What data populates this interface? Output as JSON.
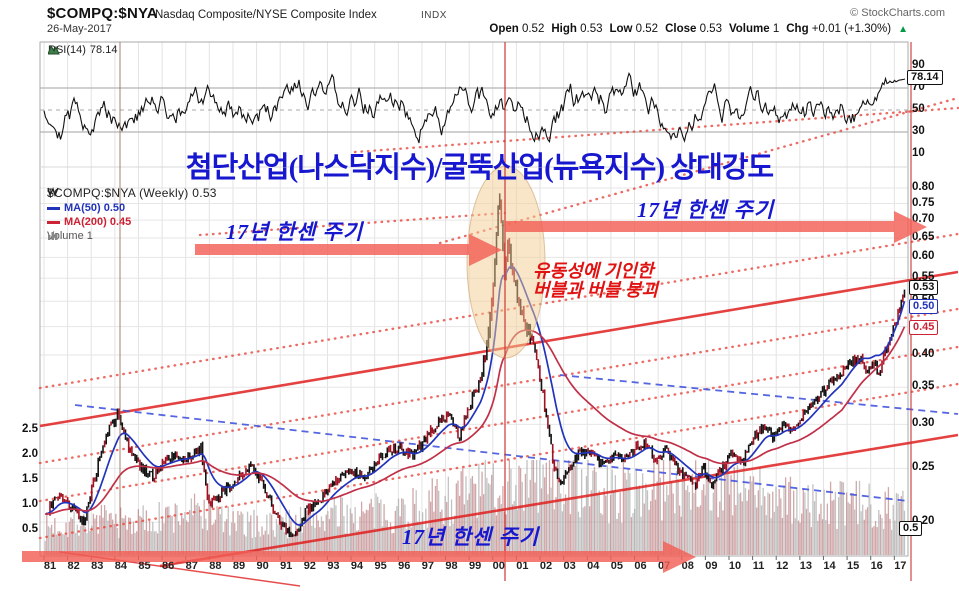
{
  "header": {
    "symbol": "$COMPQ:$NYA",
    "description": "Nasdaq Composite/NYSE Composite Index",
    "exchange": "INDX",
    "credit": "© StockCharts.com",
    "date": "26-May-2017",
    "quote": [
      {
        "label": "Open",
        "value": "0.52"
      },
      {
        "label": "High",
        "value": "0.53"
      },
      {
        "label": "Low",
        "value": "0.52"
      },
      {
        "label": "Close",
        "value": "0.53"
      },
      {
        "label": "Volume",
        "value": "1"
      },
      {
        "label": "Chg",
        "value": "+0.01 (+1.30%)"
      }
    ],
    "change_arrow": "▲"
  },
  "rsi_panel": {
    "legend_label": "RSI(14)",
    "legend_value": "78.14",
    "axis": [
      "90",
      "70",
      "50",
      "30",
      "10"
    ],
    "callout": "78.14"
  },
  "main_panel": {
    "legend_symbol": "$COMPQ:$NYA (Weekly) 0.53",
    "legend_ma50": "MA(50) 0.50",
    "legend_ma200": "MA(200) 0.45",
    "legend_volume": "Volume 1",
    "price_axis": [
      "0.80",
      "0.75",
      "0.70",
      "0.65",
      "0.60",
      "0.55",
      "0.50",
      "0.45",
      "0.40",
      "0.35",
      "0.30",
      "0.25",
      "0.20"
    ],
    "left_axis": [
      "2.5",
      "2.0",
      "1.5",
      "1.0",
      "0.5"
    ],
    "callouts": {
      "close": "0.53",
      "ma50": "0.50",
      "ma200": "0.45",
      "volume": "0.5"
    }
  },
  "x_axis": {
    "years": [
      "81",
      "82",
      "83",
      "84",
      "85",
      "86",
      "87",
      "88",
      "89",
      "90",
      "91",
      "92",
      "93",
      "94",
      "95",
      "96",
      "97",
      "98",
      "99",
      "00",
      "01",
      "02",
      "03",
      "04",
      "05",
      "06",
      "07",
      "08",
      "09",
      "10",
      "11",
      "12",
      "13",
      "14",
      "15",
      "16",
      "17"
    ]
  },
  "annotations": {
    "title": "첨단산업(나스닥지수)/굴뚝산업(뉴욕지수) 상대강도",
    "cycle_label": "17년 한센 주기",
    "bubble_line1": "유동성에 기인한",
    "bubble_line2": "버블과 버블 붕괴"
  },
  "colors": {
    "price": "#141414",
    "price_down": "#a11223",
    "ma50": "#2233bb",
    "ma200": "#c03048",
    "volume_gray": "#999999",
    "volume_red": "#b06a6e",
    "trend_red": "#e02020",
    "trend_dotted": "#e8483f",
    "trend_blue": "#4455dd",
    "arrow": "#f25f56",
    "annotation_blue": "#1717cf",
    "annotation_red": "#e01212",
    "highlight": "#f4cd94"
  },
  "chart_data": {
    "type": "line",
    "title": "$COMPQ:$NYA (Weekly) ratio of Nasdaq Composite to NYSE Composite",
    "x_unit": "year (1981-2017, weekly bars)",
    "y_scale": "log",
    "y_range": [
      0.175,
      0.82
    ],
    "last_close": 0.53,
    "ma50_last": 0.5,
    "ma200_last": 0.45,
    "rsi": {
      "period": 14,
      "last": 78.14,
      "overbought": 70,
      "oversold": 30
    },
    "price_anchors": [
      [
        81.0,
        0.205
      ],
      [
        81.6,
        0.225
      ],
      [
        82.1,
        0.213
      ],
      [
        82.7,
        0.2
      ],
      [
        83.2,
        0.245
      ],
      [
        83.7,
        0.29
      ],
      [
        84.15,
        0.315
      ],
      [
        84.6,
        0.272
      ],
      [
        85.1,
        0.25
      ],
      [
        85.6,
        0.242
      ],
      [
        86.1,
        0.258
      ],
      [
        86.6,
        0.262
      ],
      [
        87.1,
        0.262
      ],
      [
        87.65,
        0.272
      ],
      [
        87.95,
        0.215
      ],
      [
        88.5,
        0.225
      ],
      [
        89.0,
        0.235
      ],
      [
        89.8,
        0.256
      ],
      [
        90.3,
        0.232
      ],
      [
        90.8,
        0.207
      ],
      [
        91.4,
        0.188
      ],
      [
        91.7,
        0.19
      ],
      [
        92.1,
        0.21
      ],
      [
        92.6,
        0.216
      ],
      [
        93.1,
        0.233
      ],
      [
        93.6,
        0.24
      ],
      [
        94.1,
        0.247
      ],
      [
        94.6,
        0.242
      ],
      [
        95.1,
        0.258
      ],
      [
        95.6,
        0.27
      ],
      [
        96.1,
        0.272
      ],
      [
        96.6,
        0.262
      ],
      [
        97.1,
        0.28
      ],
      [
        97.6,
        0.3
      ],
      [
        98.1,
        0.312
      ],
      [
        98.6,
        0.285
      ],
      [
        99.0,
        0.325
      ],
      [
        99.45,
        0.355
      ],
      [
        99.8,
        0.43
      ],
      [
        100.05,
        0.55
      ],
      [
        100.28,
        0.78
      ],
      [
        100.5,
        0.56
      ],
      [
        100.65,
        0.64
      ],
      [
        100.8,
        0.58
      ],
      [
        101.1,
        0.5
      ],
      [
        101.4,
        0.45
      ],
      [
        101.7,
        0.42
      ],
      [
        101.95,
        0.375
      ],
      [
        102.3,
        0.3
      ],
      [
        102.65,
        0.245
      ],
      [
        102.9,
        0.238
      ],
      [
        103.3,
        0.252
      ],
      [
        103.7,
        0.268
      ],
      [
        104.1,
        0.268
      ],
      [
        104.6,
        0.255
      ],
      [
        105.1,
        0.263
      ],
      [
        105.6,
        0.258
      ],
      [
        106.1,
        0.273
      ],
      [
        106.5,
        0.28
      ],
      [
        106.9,
        0.26
      ],
      [
        107.3,
        0.27
      ],
      [
        107.7,
        0.253
      ],
      [
        108.1,
        0.244
      ],
      [
        108.6,
        0.234
      ],
      [
        108.95,
        0.25
      ],
      [
        109.25,
        0.232
      ],
      [
        109.6,
        0.247
      ],
      [
        110.1,
        0.264
      ],
      [
        110.6,
        0.258
      ],
      [
        111.1,
        0.285
      ],
      [
        111.5,
        0.3
      ],
      [
        111.9,
        0.284
      ],
      [
        112.3,
        0.3
      ],
      [
        112.7,
        0.294
      ],
      [
        113.1,
        0.31
      ],
      [
        113.6,
        0.33
      ],
      [
        114.1,
        0.35
      ],
      [
        114.6,
        0.364
      ],
      [
        115.1,
        0.386
      ],
      [
        115.55,
        0.396
      ],
      [
        115.85,
        0.372
      ],
      [
        116.15,
        0.386
      ],
      [
        116.35,
        0.372
      ],
      [
        116.65,
        0.41
      ],
      [
        117.0,
        0.45
      ],
      [
        117.25,
        0.49
      ],
      [
        117.45,
        0.53
      ]
    ],
    "volume_anchors": [
      [
        81,
        0.55
      ],
      [
        83,
        0.7
      ],
      [
        84.5,
        0.65
      ],
      [
        86,
        0.72
      ],
      [
        87.8,
        0.9
      ],
      [
        89,
        0.62
      ],
      [
        91,
        0.6
      ],
      [
        93,
        0.78
      ],
      [
        95,
        0.82
      ],
      [
        96.5,
        0.92
      ],
      [
        98,
        1.1
      ],
      [
        99.5,
        1.3
      ],
      [
        101,
        1.5
      ],
      [
        102.5,
        1.55
      ],
      [
        104,
        1.3
      ],
      [
        105,
        1.25
      ],
      [
        106,
        1.3
      ],
      [
        107.5,
        1.4
      ],
      [
        108.7,
        1.5
      ],
      [
        110,
        1.3
      ],
      [
        111.5,
        1.2
      ],
      [
        112.5,
        1.05
      ],
      [
        113.5,
        1.0
      ],
      [
        115,
        1.0
      ],
      [
        116.5,
        1.0
      ],
      [
        117.45,
        0.95
      ]
    ]
  }
}
